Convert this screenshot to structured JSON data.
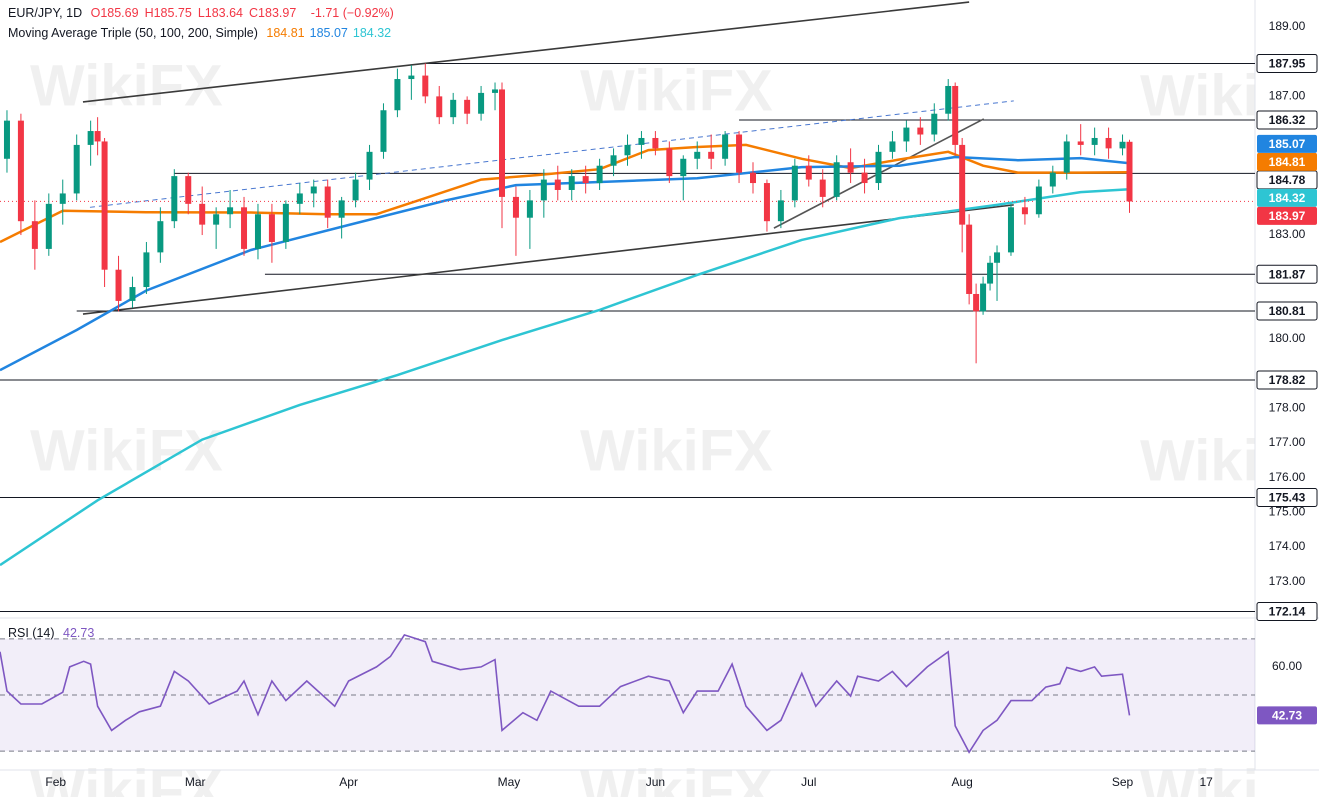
{
  "chart_data": {
    "type": "candlestick",
    "title": "EUR/JPY, 1D",
    "ohlc_labels": [
      "O185.69",
      "H185.75",
      "L183.64",
      "C183.97"
    ],
    "change": "-1.71 (−0.92%)",
    "up_color": "#089981",
    "down_color": "#f23645",
    "xlim": [
      -1,
      179
    ],
    "xticks": [
      {
        "value": 7,
        "label": "Feb"
      },
      {
        "value": 27,
        "label": "Mar"
      },
      {
        "value": 49,
        "label": "Apr"
      },
      {
        "value": 72,
        "label": "May"
      },
      {
        "value": 93,
        "label": "Jun"
      },
      {
        "value": 115,
        "label": "Jul"
      },
      {
        "value": 137,
        "label": "Aug"
      },
      {
        "value": 160,
        "label": "Sep"
      },
      {
        "value": 172,
        "label": "17"
      }
    ],
    "ylim": [
      172.04,
      189.78
    ],
    "yticks": [
      {
        "value": 189,
        "label": "189.00"
      },
      {
        "value": 187,
        "label": "187.00"
      },
      {
        "value": 183,
        "label": "183.00"
      },
      {
        "value": 180,
        "label": "180.00"
      },
      {
        "value": 178,
        "label": "178.00"
      },
      {
        "value": 177,
        "label": "177.00"
      },
      {
        "value": 176,
        "label": "176.00"
      },
      {
        "value": 175,
        "label": "175.00"
      },
      {
        "value": 174,
        "label": "174.00"
      },
      {
        "value": 173,
        "label": "173.00"
      }
    ],
    "x": [
      0,
      2,
      4,
      6,
      8,
      10,
      12,
      13,
      14,
      16,
      18,
      20,
      22,
      24,
      26,
      28,
      30,
      32,
      34,
      36,
      38,
      40,
      42,
      44,
      46,
      48,
      50,
      52,
      54,
      56,
      58,
      60,
      62,
      64,
      66,
      68,
      70,
      71,
      73,
      75,
      77,
      79,
      81,
      83,
      85,
      87,
      89,
      91,
      93,
      95,
      97,
      99,
      101,
      103,
      105,
      107,
      109,
      111,
      113,
      115,
      117,
      119,
      121,
      123,
      125,
      127,
      129,
      131,
      133,
      135,
      136,
      137,
      138,
      139,
      140,
      141,
      142,
      144,
      146,
      148,
      150,
      152,
      154,
      156,
      158,
      160,
      161
    ],
    "open": [
      185.2,
      186.3,
      183.4,
      182.6,
      183.9,
      184.2,
      185.6,
      186.0,
      185.7,
      182.0,
      181.1,
      181.5,
      182.5,
      183.4,
      184.7,
      183.9,
      183.3,
      183.6,
      183.8,
      182.6,
      183.6,
      182.8,
      183.9,
      184.2,
      184.4,
      183.5,
      184.0,
      184.6,
      185.4,
      186.6,
      187.5,
      187.6,
      187.0,
      186.4,
      186.9,
      186.5,
      187.1,
      187.2,
      184.1,
      183.5,
      184.0,
      184.6,
      184.3,
      184.7,
      184.5,
      185.0,
      185.3,
      185.6,
      185.8,
      185.5,
      184.7,
      185.2,
      185.4,
      185.2,
      185.9,
      184.8,
      184.5,
      183.4,
      184.0,
      185.0,
      184.6,
      184.1,
      185.1,
      184.8,
      184.5,
      185.4,
      185.7,
      186.1,
      185.9,
      186.5,
      187.3,
      185.6,
      183.3,
      181.3,
      180.8,
      181.6,
      182.2,
      182.5,
      183.8,
      183.6,
      184.4,
      184.8,
      185.7,
      185.6,
      185.8,
      185.5,
      185.69
    ],
    "high": [
      186.6,
      186.5,
      184.0,
      184.2,
      184.6,
      185.9,
      186.3,
      186.4,
      185.8,
      182.4,
      181.8,
      182.8,
      183.8,
      184.9,
      184.8,
      184.4,
      183.8,
      184.3,
      184.1,
      183.9,
      183.9,
      184.0,
      184.5,
      184.6,
      184.6,
      184.1,
      184.8,
      185.6,
      186.8,
      187.8,
      187.9,
      187.95,
      187.3,
      187.1,
      187.0,
      187.3,
      187.4,
      187.4,
      184.4,
      184.3,
      184.9,
      185.0,
      184.9,
      185.0,
      185.2,
      185.5,
      185.9,
      186.0,
      186.0,
      185.7,
      185.3,
      185.7,
      185.9,
      186.0,
      186.0,
      185.1,
      184.6,
      184.3,
      185.2,
      185.3,
      184.9,
      185.3,
      185.5,
      185.2,
      185.6,
      186.0,
      186.3,
      186.4,
      186.8,
      187.5,
      187.4,
      185.8,
      183.6,
      181.6,
      181.8,
      182.4,
      182.7,
      183.9,
      184.1,
      184.6,
      185.0,
      185.9,
      186.2,
      186.1,
      186.1,
      185.9,
      185.75
    ],
    "low": [
      184.8,
      183.0,
      182.0,
      182.4,
      183.3,
      184.0,
      185.0,
      185.3,
      181.5,
      180.8,
      180.9,
      181.3,
      182.2,
      183.2,
      183.6,
      183.0,
      182.6,
      183.2,
      182.4,
      182.3,
      182.2,
      182.6,
      183.6,
      183.8,
      183.2,
      182.9,
      183.8,
      184.3,
      185.2,
      186.4,
      186.9,
      186.8,
      186.2,
      186.2,
      186.2,
      186.3,
      186.6,
      183.2,
      182.4,
      182.6,
      183.5,
      184.0,
      184.0,
      184.2,
      184.3,
      184.7,
      185.0,
      185.2,
      185.3,
      184.5,
      184.0,
      184.9,
      184.9,
      185.0,
      184.5,
      184.2,
      183.1,
      183.2,
      183.8,
      184.4,
      183.8,
      184.0,
      184.5,
      184.2,
      184.3,
      185.2,
      185.4,
      185.6,
      185.7,
      186.3,
      185.3,
      182.5,
      181.0,
      179.3,
      180.7,
      181.4,
      181.1,
      182.4,
      183.3,
      183.5,
      184.2,
      184.6,
      185.3,
      185.3,
      185.2,
      185.3,
      183.64
    ],
    "close": [
      186.3,
      183.4,
      182.6,
      183.9,
      184.2,
      185.6,
      186.0,
      185.7,
      182.0,
      181.1,
      181.5,
      182.5,
      183.4,
      184.7,
      183.9,
      183.3,
      183.6,
      183.8,
      182.6,
      183.6,
      182.8,
      183.9,
      184.2,
      184.4,
      183.5,
      184.0,
      184.6,
      185.4,
      186.6,
      187.5,
      187.6,
      187.0,
      186.4,
      186.9,
      186.5,
      187.1,
      187.2,
      184.1,
      183.5,
      184.0,
      184.6,
      184.3,
      184.7,
      184.5,
      185.0,
      185.3,
      185.6,
      185.8,
      185.5,
      184.7,
      185.2,
      185.4,
      185.2,
      185.9,
      184.8,
      184.5,
      183.4,
      184.0,
      185.0,
      184.6,
      184.1,
      185.1,
      184.8,
      184.5,
      185.4,
      185.7,
      186.1,
      185.9,
      186.5,
      187.3,
      185.6,
      183.3,
      181.3,
      180.8,
      181.6,
      182.2,
      182.5,
      183.8,
      183.6,
      184.4,
      184.8,
      185.7,
      185.6,
      185.8,
      185.5,
      185.69,
      183.97
    ],
    "last_price": 183.97,
    "moving_averages": {
      "label": "Moving Average Triple (50, 100, 200, Simple)",
      "series": [
        {
          "color": "#f57c00",
          "last": 184.81,
          "x": [
            -1,
            8,
            20,
            35,
            46,
            53,
            59,
            68,
            76,
            85,
            92,
            99,
            106,
            114,
            121,
            128,
            135,
            140,
            145,
            154,
            161
          ],
          "values": [
            182.8,
            183.7,
            183.66,
            183.65,
            183.6,
            183.6,
            184.0,
            184.6,
            184.73,
            184.9,
            185.45,
            185.54,
            185.6,
            185.2,
            184.93,
            185.18,
            185.4,
            185.0,
            184.8,
            184.8,
            184.81
          ]
        },
        {
          "color": "#2185e0",
          "last": 185.07,
          "x": [
            -1,
            10,
            20,
            35,
            49,
            63,
            73,
            85,
            99,
            114,
            128,
            136,
            145,
            154,
            161
          ],
          "values": [
            179.1,
            180.26,
            181.4,
            182.57,
            183.29,
            184.0,
            184.44,
            184.53,
            184.64,
            184.96,
            185.0,
            185.25,
            185.16,
            185.22,
            185.07
          ]
        },
        {
          "color": "#2ec5d3",
          "last": 184.32,
          "x": [
            -1,
            13,
            28,
            42,
            56,
            71,
            85,
            99,
            114,
            128,
            142,
            154,
            161
          ],
          "values": [
            173.48,
            175.35,
            177.1,
            178.1,
            178.96,
            179.97,
            180.84,
            181.85,
            182.86,
            183.49,
            183.87,
            184.24,
            184.32
          ]
        }
      ]
    },
    "levels": [
      {
        "value": 187.95,
        "x_start": 60
      },
      {
        "value": 186.32,
        "x_start": 105
      },
      {
        "value": 184.78,
        "x_start": 24
      },
      {
        "value": 181.87,
        "x_start": 37
      },
      {
        "value": 180.81,
        "x_start": 10
      },
      {
        "value": 178.82,
        "x_start": -1
      },
      {
        "value": 175.43,
        "x_start": -1
      },
      {
        "value": 172.14,
        "x_start": -1
      }
    ],
    "trendlines": [
      {
        "color": "#3a3a3a",
        "dashed": false,
        "x": [
          10.9,
          138
        ],
        "y": [
          186.84,
          189.72
        ]
      },
      {
        "color": "#3a3a3a",
        "dashed": false,
        "x": [
          10.9,
          144.4
        ],
        "y": [
          180.72,
          183.87
        ]
      },
      {
        "color": "#4a78d0",
        "dashed": true,
        "x": [
          11.9,
          144.4
        ],
        "y": [
          183.8,
          186.87
        ]
      },
      {
        "color": "#555555",
        "dashed": false,
        "x": [
          110,
          140.1
        ],
        "y": [
          183.2,
          186.35
        ]
      }
    ],
    "watermark": "WikiFX",
    "rsi": {
      "label": "RSI (14)",
      "last": 42.73,
      "color": "#7e57c2",
      "ylim": [
        24,
        76
      ],
      "band": [
        30,
        70
      ],
      "mid": 50,
      "yticks": [
        {
          "value": 60,
          "label": "60.00"
        }
      ],
      "x": [
        -1,
        0,
        2,
        5,
        8,
        9,
        11,
        12,
        13,
        15,
        17,
        19,
        22,
        24,
        26,
        29,
        33,
        34,
        36,
        38,
        40,
        43,
        47,
        49,
        53,
        55,
        57,
        60,
        61,
        65,
        68,
        70,
        71,
        74,
        76,
        78,
        82,
        85,
        88,
        92,
        95,
        97,
        99,
        102,
        104,
        106,
        109,
        111,
        114,
        116,
        119,
        121,
        122,
        125,
        127,
        129,
        132,
        135,
        136,
        138,
        140,
        142,
        144,
        147,
        149,
        151,
        152,
        154,
        156,
        157,
        160,
        161
      ],
      "values": [
        65.4,
        51.4,
        46.8,
        46.8,
        51,
        60,
        62,
        61,
        46,
        37.4,
        41,
        44,
        46,
        58.4,
        55,
        46.8,
        51.4,
        55,
        43,
        55,
        48,
        55,
        46,
        55,
        60,
        63.7,
        71.4,
        69,
        62,
        59,
        60,
        62.6,
        37.4,
        43.7,
        41,
        51.4,
        46,
        46,
        53,
        56.7,
        55,
        43.7,
        51.4,
        51.4,
        61,
        46,
        37.4,
        41,
        57.7,
        46,
        55,
        49.6,
        56.7,
        55,
        58.4,
        53,
        60,
        65.4,
        39,
        29.6,
        37.4,
        41,
        48,
        48,
        52.8,
        54,
        59.8,
        58.4,
        60,
        56.7,
        57.4,
        42.73
      ]
    }
  }
}
